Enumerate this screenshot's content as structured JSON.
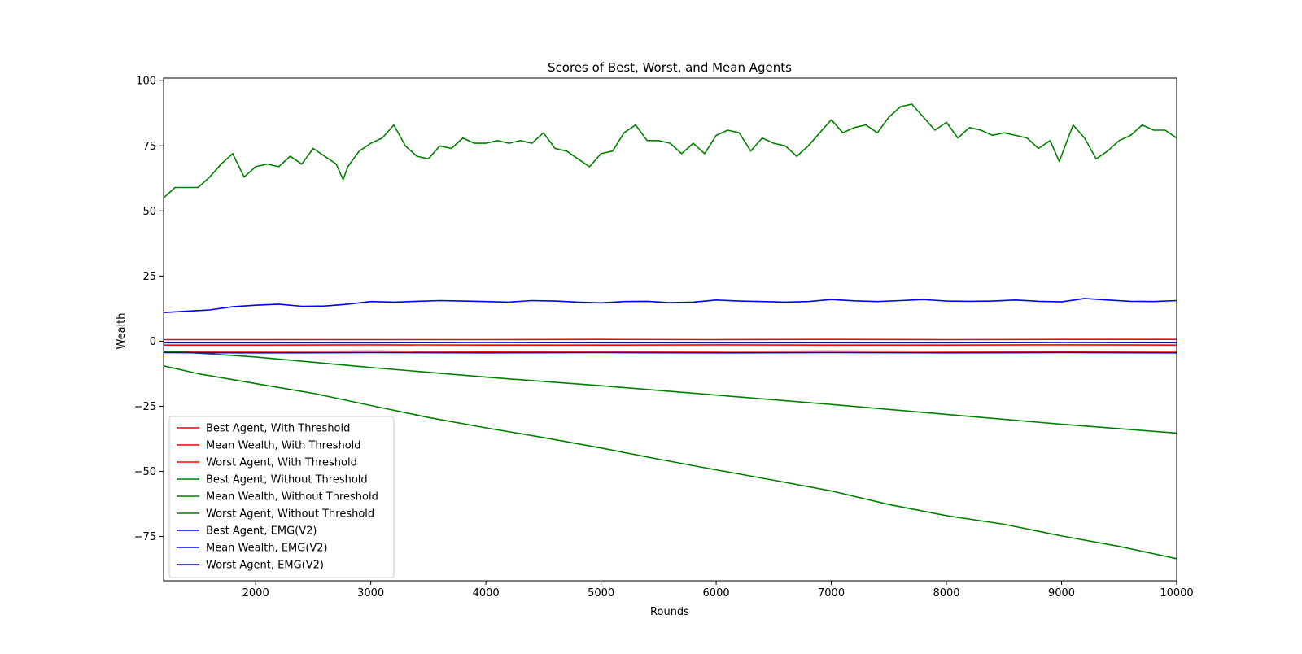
{
  "chart_data": {
    "type": "line",
    "title": "Scores of Best, Worst, and Mean Agents",
    "xlabel": "Rounds",
    "ylabel": "Wealth",
    "xlim": [
      1200,
      10000
    ],
    "ylim": [
      -92,
      101
    ],
    "x_ticks": [
      2000,
      3000,
      4000,
      5000,
      6000,
      7000,
      8000,
      9000,
      10000
    ],
    "y_ticks": [
      -75,
      -50,
      -25,
      0,
      25,
      50,
      75,
      100
    ],
    "x_tick_labels": [
      "2000",
      "3000",
      "4000",
      "5000",
      "6000",
      "7000",
      "8000",
      "9000",
      "10000"
    ],
    "y_tick_labels": [
      "−75",
      "−50",
      "−25",
      "0",
      "25",
      "50",
      "75",
      "100"
    ],
    "grid": false,
    "legend_position": "lower-left",
    "series": [
      {
        "name": "Best Agent, With Threshold",
        "color": "#ff0000",
        "x": [
          1200,
          2000,
          3000,
          4000,
          5000,
          6000,
          7000,
          8000,
          9000,
          10000
        ],
        "values": [
          0.6,
          0.6,
          0.6,
          0.6,
          0.7,
          0.6,
          0.7,
          0.6,
          0.7,
          0.7
        ]
      },
      {
        "name": "Mean Wealth, With Threshold",
        "color": "#ff0000",
        "x": [
          1200,
          2000,
          3000,
          4000,
          5000,
          6000,
          7000,
          8000,
          9000,
          10000
        ],
        "values": [
          -1.5,
          -1.5,
          -1.4,
          -1.5,
          -1.5,
          -1.4,
          -1.5,
          -1.5,
          -1.4,
          -1.5
        ]
      },
      {
        "name": "Worst Agent, With Threshold",
        "color": "#ff0000",
        "x": [
          1200,
          2000,
          3000,
          4000,
          5000,
          6000,
          7000,
          8000,
          9000,
          10000
        ],
        "values": [
          -3.9,
          -3.9,
          -3.8,
          -4.0,
          -3.9,
          -3.9,
          -3.8,
          -3.9,
          -4.0,
          -3.9
        ]
      },
      {
        "name": "Best Agent, Without Threshold",
        "color": "#008000",
        "x": [
          1200,
          1300,
          1500,
          1600,
          1700,
          1800,
          1900,
          2000,
          2100,
          2200,
          2300,
          2400,
          2500,
          2600,
          2700,
          2760,
          2800,
          2900,
          3000,
          3100,
          3200,
          3300,
          3400,
          3500,
          3600,
          3700,
          3800,
          3900,
          4000,
          4100,
          4200,
          4300,
          4400,
          4500,
          4600,
          4700,
          4800,
          4900,
          5000,
          5100,
          5200,
          5300,
          5400,
          5500,
          5600,
          5700,
          5800,
          5900,
          6000,
          6100,
          6200,
          6300,
          6400,
          6500,
          6600,
          6700,
          6800,
          6900,
          7000,
          7100,
          7200,
          7300,
          7400,
          7500,
          7600,
          7700,
          7800,
          7900,
          8000,
          8100,
          8200,
          8300,
          8400,
          8500,
          8600,
          8700,
          8800,
          8900,
          8980,
          9100,
          9200,
          9300,
          9400,
          9500,
          9600,
          9700,
          9800,
          9900,
          10000
        ],
        "values": [
          55,
          59,
          59,
          63,
          68,
          72,
          63,
          67,
          68,
          67,
          71,
          68,
          74,
          71,
          68,
          62,
          67,
          73,
          76,
          78,
          83,
          75,
          71,
          70,
          75,
          74,
          78,
          76,
          76,
          77,
          76,
          77,
          76,
          80,
          74,
          73,
          70,
          67,
          72,
          73,
          80,
          83,
          77,
          77,
          76,
          72,
          76,
          72,
          79,
          81,
          80,
          73,
          78,
          76,
          75,
          71,
          75,
          80,
          85,
          80,
          82,
          83,
          80,
          86,
          90,
          91,
          86,
          81,
          84,
          78,
          82,
          81,
          79,
          80,
          79,
          78,
          74,
          77,
          69,
          83,
          78,
          70,
          73,
          77,
          79,
          83,
          81,
          81,
          78
        ]
      },
      {
        "name": "Mean Wealth, Without Threshold",
        "color": "#008000",
        "x": [
          1200,
          1400,
          2000,
          3000,
          4000,
          5000,
          6000,
          7000,
          8000,
          9000,
          10000
        ],
        "values": [
          -4,
          -4.3,
          -6.1,
          -10.1,
          -13.8,
          -17.1,
          -20.7,
          -24.3,
          -28.1,
          -31.9,
          -35.3
        ]
      },
      {
        "name": "Worst Agent, Without Threshold",
        "color": "#008000",
        "x": [
          1200,
          1500,
          2000,
          2500,
          3000,
          3500,
          4000,
          4500,
          5000,
          5500,
          6000,
          6500,
          7000,
          7500,
          8000,
          8500,
          9000,
          9500,
          10000
        ],
        "values": [
          -9.5,
          -12.5,
          -16.3,
          -20.0,
          -24.7,
          -29.3,
          -33.3,
          -37.0,
          -41.0,
          -45.3,
          -49.4,
          -53.4,
          -57.5,
          -62.7,
          -67.0,
          -70.3,
          -74.8,
          -78.8,
          -83.5
        ]
      },
      {
        "name": "Best Agent, EMG(V2)",
        "color": "#0000ff",
        "x": [
          1200,
          1400,
          1600,
          1800,
          2000,
          2200,
          2400,
          2600,
          2800,
          3000,
          3200,
          3400,
          3600,
          3800,
          4000,
          4200,
          4400,
          4600,
          4800,
          5000,
          5200,
          5400,
          5600,
          5800,
          6000,
          6200,
          6400,
          6600,
          6800,
          7000,
          7200,
          7400,
          7600,
          7800,
          8000,
          8200,
          8400,
          8600,
          8800,
          9000,
          9200,
          9400,
          9600,
          9800,
          10000
        ],
        "values": [
          11,
          11.5,
          12,
          13.2,
          13.8,
          14.2,
          13.4,
          13.5,
          14.2,
          15.2,
          15.0,
          15.3,
          15.6,
          15.4,
          15.2,
          15.0,
          15.6,
          15.4,
          15.0,
          14.7,
          15.2,
          15.3,
          14.8,
          15.0,
          15.8,
          15.4,
          15.2,
          15.0,
          15.2,
          16.0,
          15.5,
          15.2,
          15.6,
          16.0,
          15.4,
          15.3,
          15.4,
          15.8,
          15.3,
          15.1,
          16.4,
          15.8,
          15.3,
          15.2,
          15.6
        ]
      },
      {
        "name": "Mean Wealth, EMG(V2)",
        "color": "#0000ff",
        "x": [
          1200,
          2000,
          3000,
          4000,
          5000,
          6000,
          7000,
          8000,
          9000,
          10000
        ],
        "values": [
          -0.6,
          -0.6,
          -0.6,
          -0.5,
          -0.6,
          -0.6,
          -0.6,
          -0.6,
          -0.5,
          -0.6
        ]
      },
      {
        "name": "Worst Agent, EMG(V2)",
        "color": "#0000ff",
        "x": [
          1200,
          2000,
          3000,
          4000,
          5000,
          6000,
          7000,
          8000,
          9000,
          10000
        ],
        "values": [
          -4.4,
          -4.5,
          -4.4,
          -4.5,
          -4.4,
          -4.5,
          -4.4,
          -4.5,
          -4.4,
          -4.5
        ]
      }
    ]
  }
}
